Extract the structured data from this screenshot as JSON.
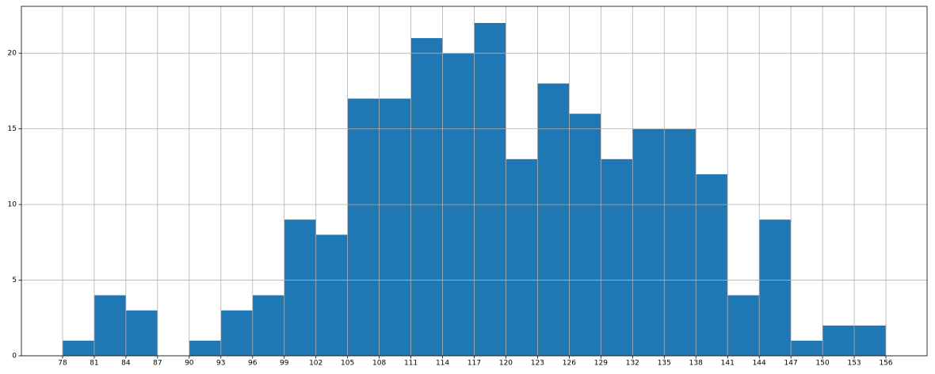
{
  "chart_data": {
    "type": "histogram",
    "bins": [
      78,
      81,
      84,
      87,
      90,
      93,
      96,
      99,
      102,
      105,
      108,
      111,
      114,
      117,
      120,
      123,
      126,
      129,
      132,
      135,
      138,
      141,
      144,
      147,
      150,
      153,
      156
    ],
    "counts": [
      1,
      4,
      3,
      0,
      1,
      3,
      4,
      9,
      8,
      17,
      17,
      21,
      20,
      22,
      13,
      18,
      16,
      13,
      15,
      15,
      12,
      4,
      9,
      1,
      2,
      2
    ],
    "color": "#1f77b4",
    "xlim": [
      74.1,
      159.9
    ],
    "xticks": [
      78,
      81,
      84,
      87,
      90,
      93,
      96,
      99,
      102,
      105,
      108,
      111,
      114,
      117,
      120,
      123,
      126,
      129,
      132,
      135,
      138,
      141,
      144,
      147,
      150,
      153,
      156
    ],
    "ylim": [
      0,
      23.1
    ],
    "yticks": [
      0,
      5,
      10,
      15,
      20
    ],
    "grid": true
  }
}
